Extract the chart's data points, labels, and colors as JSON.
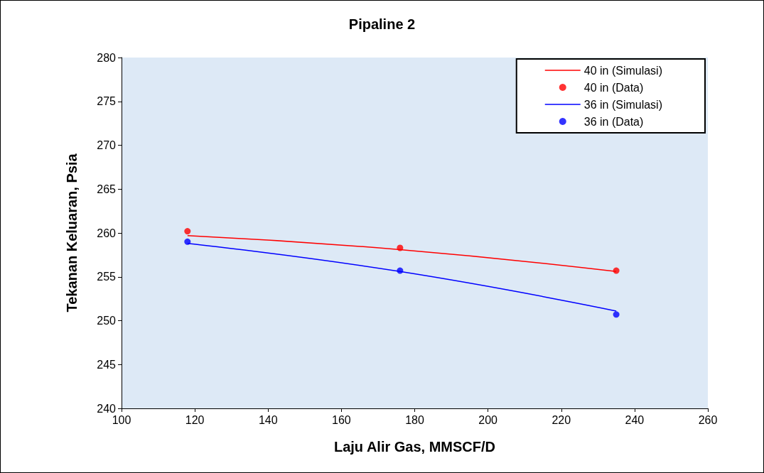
{
  "chart_data": {
    "type": "line",
    "title": "Pipaline 2",
    "xlabel": "Laju Alir Gas, MMSCF/D",
    "ylabel": "Tekanan Keluaran, Psia",
    "xlim": [
      100,
      260
    ],
    "xticks": [
      100,
      120,
      140,
      160,
      180,
      200,
      220,
      240,
      260
    ],
    "ylim": [
      240,
      280
    ],
    "yticks": [
      240,
      245,
      250,
      255,
      260,
      265,
      270,
      275,
      280
    ],
    "grid": false,
    "legend": "top right",
    "series": [
      {
        "name": "40 in (Simulasi)",
        "color": "#ff0000",
        "marker": "none",
        "line_style": "solid",
        "x": [
          118,
          176,
          235
        ],
        "values": [
          259.7,
          258.1,
          255.6
        ]
      },
      {
        "name": "40 in (Data)",
        "type": "scatter",
        "color": "#ff0000",
        "marker": "circle",
        "x": [
          118,
          176,
          235
        ],
        "values": [
          260.2,
          258.3,
          255.7
        ]
      },
      {
        "name": "36 in (Simulasi)",
        "color": "#0000ff",
        "marker": "none",
        "line_style": "solid",
        "x": [
          118,
          176,
          235
        ],
        "values": [
          258.8,
          255.6,
          251.1
        ]
      },
      {
        "name": "36 in (Data)",
        "type": "scatter",
        "color": "#0000ff",
        "marker": "circle",
        "x": [
          118,
          176,
          235
        ],
        "values": [
          259.0,
          255.7,
          250.7
        ]
      }
    ]
  }
}
